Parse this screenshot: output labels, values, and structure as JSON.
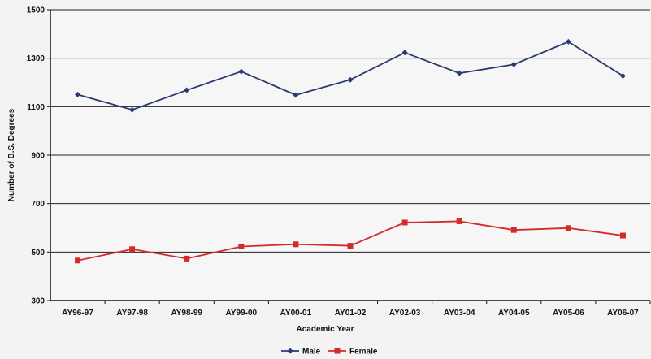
{
  "chart_data": {
    "type": "line",
    "categories": [
      "AY96-97",
      "AY97-98",
      "AY98-99",
      "AY99-00",
      "AY00-01",
      "AY01-02",
      "AY02-03",
      "AY03-04",
      "AY04-05",
      "AY05-06",
      "AY06-07"
    ],
    "series": [
      {
        "name": "Male",
        "color": "#2b3a6e",
        "marker": "diamond",
        "values": [
          1150,
          1087,
          1168,
          1245,
          1148,
          1211,
          1323,
          1238,
          1274,
          1368,
          1227
        ]
      },
      {
        "name": "Female",
        "color": "#d62a2a",
        "marker": "square",
        "values": [
          465,
          512,
          473,
          523,
          532,
          526,
          622,
          627,
          591,
          599,
          568
        ]
      }
    ],
    "title": "",
    "xlabel": "Academic Year",
    "ylabel": "Number of B.S. Degrees",
    "ylim": [
      300,
      1500
    ],
    "yticks": [
      300,
      500,
      700,
      900,
      1100,
      1300,
      1500
    ],
    "grid": true,
    "legend": "bottom-center"
  }
}
